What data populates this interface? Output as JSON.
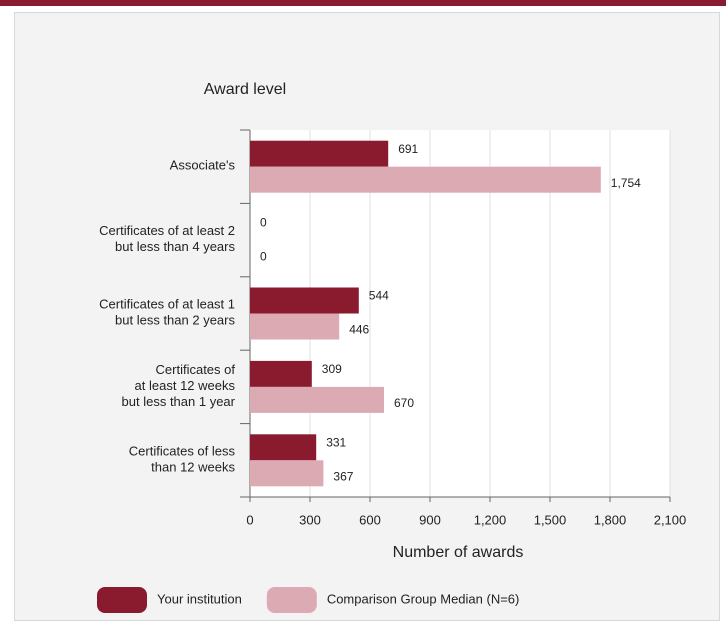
{
  "chart_data": {
    "type": "hbar",
    "title": "Award level",
    "xlabel": "Number of awards",
    "categories": [
      "Associate's",
      "Certificates of at least 2\nbut less than 4 years",
      "Certificates of at least 1\nbut less than 2 years",
      "Certificates of\nat least 12 weeks\nbut less than 1 year",
      "Certificates of less\nthan 12 weeks"
    ],
    "series": [
      {
        "name": "Your institution",
        "color": "#8a1b2e",
        "values": [
          691,
          0,
          544,
          309,
          331
        ],
        "value_labels": [
          "691",
          "0",
          "544",
          "309",
          "331"
        ]
      },
      {
        "name": "Comparison Group Median (N=6)",
        "color": "#dcaab2",
        "values": [
          1754,
          0,
          446,
          670,
          367
        ],
        "value_labels": [
          "1,754",
          "0",
          "446",
          "670",
          "367"
        ]
      }
    ],
    "xlim": [
      0,
      2100
    ],
    "xticks": [
      0,
      300,
      600,
      900,
      {
        "value": 1200,
        "label": "1,200"
      },
      {
        "value": 1500,
        "label": "1,500"
      },
      {
        "value": 1800,
        "label": "1,800"
      },
      {
        "value": 2100,
        "label": "2,100"
      }
    ],
    "grid": true
  }
}
